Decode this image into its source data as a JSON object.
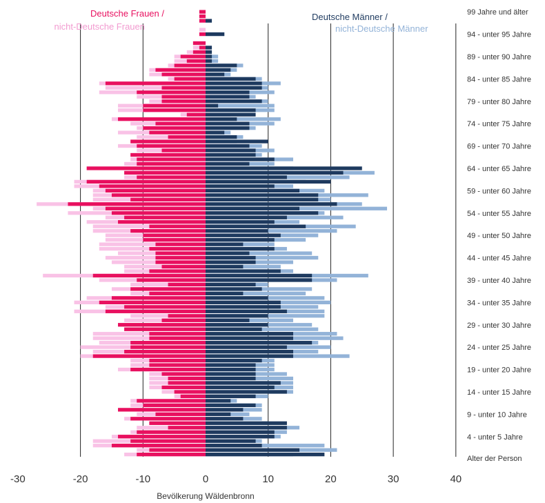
{
  "chart_data": {
    "type": "bar",
    "subtype": "population-pyramid",
    "title": "",
    "xlabel": "Bevölkerung Wäldenbronn",
    "xlim": [
      -30,
      40
    ],
    "xticks": [
      -30,
      -20,
      -10,
      0,
      10,
      20,
      30,
      40
    ],
    "grid": "vertical",
    "orientation": "horizontal",
    "ages": [
      0,
      1,
      2,
      3,
      4,
      5,
      6,
      7,
      8,
      9,
      10,
      11,
      12,
      13,
      14,
      15,
      16,
      17,
      18,
      19,
      20,
      21,
      22,
      23,
      24,
      25,
      26,
      27,
      28,
      29,
      30,
      31,
      32,
      33,
      34,
      35,
      36,
      37,
      38,
      39,
      40,
      41,
      42,
      43,
      44,
      45,
      46,
      47,
      48,
      49,
      50,
      51,
      52,
      53,
      54,
      55,
      56,
      57,
      58,
      59,
      60,
      61,
      62,
      63,
      64,
      65,
      66,
      67,
      68,
      69,
      70,
      71,
      72,
      73,
      74,
      75,
      76,
      77,
      78,
      79,
      80,
      81,
      82,
      83,
      84,
      85,
      86,
      87,
      88,
      89,
      90,
      91,
      92,
      93,
      94,
      95,
      96,
      97,
      98,
      99
    ],
    "age_labels": [
      {
        "age": 99,
        "text": "99 Jahre und älter"
      },
      {
        "age": 94,
        "text": "94 - unter 95 Jahre"
      },
      {
        "age": 89,
        "text": "89 - unter 90 Jahre"
      },
      {
        "age": 84,
        "text": "84 - unter 85 Jahre"
      },
      {
        "age": 79,
        "text": "79 - unter 80 Jahre"
      },
      {
        "age": 74,
        "text": "74 - unter 75 Jahre"
      },
      {
        "age": 69,
        "text": "69 - unter 70 Jahre"
      },
      {
        "age": 64,
        "text": "64 - unter 65 Jahre"
      },
      {
        "age": 59,
        "text": "59 - unter 60 Jahre"
      },
      {
        "age": 54,
        "text": "54 - unter 55 Jahre"
      },
      {
        "age": 49,
        "text": "49 - unter 50 Jahre"
      },
      {
        "age": 44,
        "text": "44 - unter 45 Jahre"
      },
      {
        "age": 39,
        "text": "39 - unter 40 Jahre"
      },
      {
        "age": 34,
        "text": "34 - unter 35 Jahre"
      },
      {
        "age": 29,
        "text": "29 - unter 30 Jahre"
      },
      {
        "age": 24,
        "text": "24 - unter 25 Jahre"
      },
      {
        "age": 19,
        "text": "19 - unter 20 Jahre"
      },
      {
        "age": 14,
        "text": "14 - unter 15 Jahre"
      },
      {
        "age": 9,
        "text": "9 - unter 10 Jahre"
      },
      {
        "age": 4,
        "text": "4 - unter 5 Jahre"
      }
    ],
    "axis_category_label": "Alter der Person",
    "series": [
      {
        "name": "Deutsche Frauen /",
        "side": "left",
        "color": "#e8105f",
        "values": [
          11,
          9,
          15,
          12,
          14,
          11,
          6,
          9,
          12,
          8,
          14,
          10,
          11,
          4,
          5,
          7,
          6,
          6,
          7,
          12,
          9,
          9,
          18,
          13,
          12,
          12,
          9,
          9,
          13,
          14,
          7,
          6,
          16,
          13,
          17,
          15,
          9,
          12,
          6,
          11,
          18,
          9,
          7,
          8,
          8,
          8,
          9,
          8,
          10,
          10,
          12,
          9,
          14,
          13,
          15,
          16,
          22,
          12,
          15,
          16,
          17,
          19,
          11,
          13,
          19,
          11,
          11,
          12,
          7,
          11,
          12,
          6,
          9,
          10,
          8,
          14,
          3,
          10,
          10,
          7,
          7,
          11,
          7,
          16,
          5,
          7,
          8,
          5,
          3,
          4,
          2,
          1,
          2,
          0,
          1,
          0,
          0,
          1,
          1,
          1
        ]
      },
      {
        "name": "nicht-Deutsche Frauen",
        "side": "left",
        "color": "#f9c2e6",
        "values": [
          13,
          11,
          18,
          18,
          15,
          12,
          11,
          9,
          13,
          11,
          12,
          12,
          12,
          5,
          7,
          9,
          9,
          9,
          9,
          14,
          12,
          12,
          20,
          18,
          20,
          17,
          18,
          18,
          13,
          14,
          13,
          12,
          21,
          16,
          21,
          19,
          12,
          15,
          12,
          17,
          26,
          13,
          13,
          15,
          16,
          14,
          17,
          17,
          16,
          16,
          18,
          18,
          19,
          16,
          22,
          18,
          27,
          18,
          18,
          18,
          21,
          21,
          13,
          13,
          19,
          13,
          12,
          12,
          11,
          14,
          12,
          11,
          14,
          11,
          12,
          15,
          4,
          14,
          14,
          9,
          11,
          17,
          16,
          17,
          6,
          9,
          9,
          6,
          5,
          5,
          3,
          2,
          2,
          0,
          1,
          1,
          0,
          1,
          1,
          1
        ]
      },
      {
        "name": "Deutsche Männer /",
        "side": "right",
        "color": "#1e3a5f",
        "values": [
          19,
          15,
          9,
          8,
          11,
          11,
          13,
          13,
          6,
          4,
          6,
          8,
          4,
          8,
          13,
          11,
          12,
          8,
          8,
          8,
          8,
          9,
          14,
          14,
          13,
          17,
          14,
          14,
          9,
          10,
          7,
          10,
          13,
          12,
          12,
          10,
          6,
          9,
          8,
          17,
          17,
          12,
          6,
          8,
          8,
          7,
          11,
          6,
          11,
          12,
          10,
          16,
          11,
          13,
          18,
          15,
          21,
          18,
          18,
          15,
          11,
          20,
          13,
          22,
          25,
          7,
          11,
          8,
          8,
          7,
          10,
          5,
          3,
          7,
          7,
          5,
          8,
          8,
          2,
          9,
          7,
          7,
          9,
          9,
          8,
          3,
          4,
          5,
          1,
          1,
          1,
          1,
          0,
          0,
          3,
          0,
          0,
          1,
          0,
          0
        ]
      },
      {
        "name": "nicht-Deutsche Männer",
        "side": "right",
        "color": "#93b3d8",
        "values": [
          14,
          21,
          19,
          9,
          12,
          13,
          15,
          10,
          9,
          7,
          9,
          9,
          5,
          10,
          14,
          14,
          14,
          14,
          13,
          11,
          11,
          11,
          23,
          18,
          20,
          18,
          22,
          21,
          18,
          17,
          14,
          19,
          19,
          18,
          20,
          19,
          16,
          17,
          10,
          21,
          26,
          14,
          12,
          14,
          18,
          17,
          13,
          11,
          16,
          18,
          21,
          24,
          15,
          22,
          19,
          29,
          25,
          20,
          26,
          19,
          14,
          16,
          23,
          27,
          14,
          11,
          14,
          9,
          11,
          9,
          5,
          6,
          4,
          8,
          11,
          12,
          4,
          11,
          11,
          10,
          8,
          11,
          10,
          12,
          9,
          4,
          5,
          6,
          2,
          2,
          1,
          1,
          0,
          0,
          3,
          0,
          0,
          1,
          0,
          0
        ]
      }
    ]
  }
}
